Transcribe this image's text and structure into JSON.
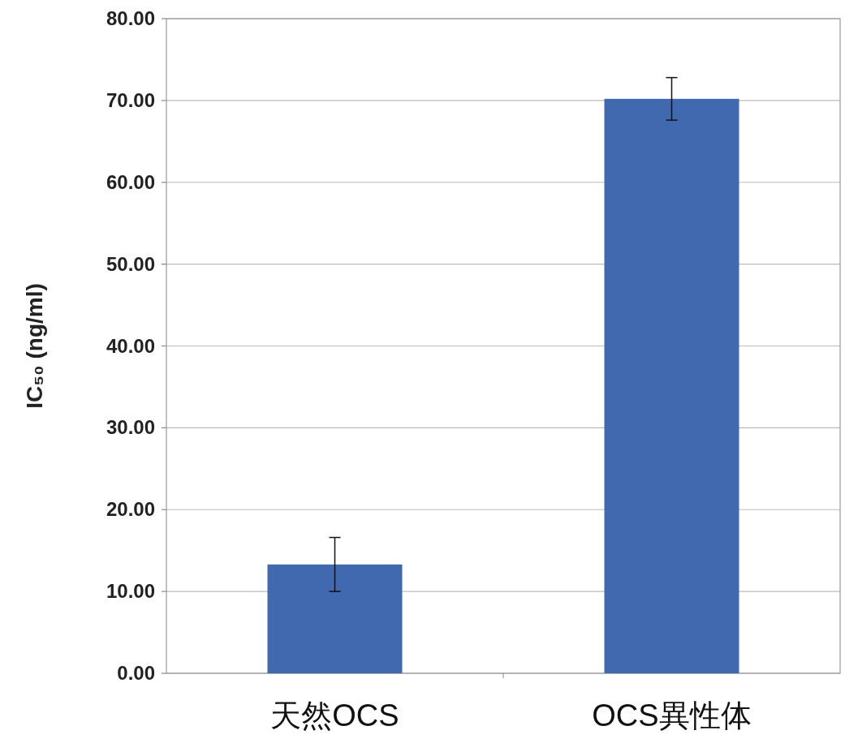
{
  "chart_data": {
    "type": "bar",
    "ylabel": "IC₅₀ (ng/ml)",
    "categories": [
      "天然OCS",
      "OCS異性体"
    ],
    "values": [
      13.3,
      70.2
    ],
    "errors": [
      3.3,
      2.6
    ],
    "color": "#4169b0",
    "ylim": [
      0,
      80
    ],
    "yticks": [
      {
        "value": 0,
        "label": "0.00"
      },
      {
        "value": 10,
        "label": "10.00"
      },
      {
        "value": 20,
        "label": "20.00"
      },
      {
        "value": 30,
        "label": "30.00"
      },
      {
        "value": 40,
        "label": "40.00"
      },
      {
        "value": 50,
        "label": "50.00"
      },
      {
        "value": 60,
        "label": "60.00"
      },
      {
        "value": 70,
        "label": "70.00"
      },
      {
        "value": 80,
        "label": "80.00"
      }
    ],
    "grid": "y"
  }
}
